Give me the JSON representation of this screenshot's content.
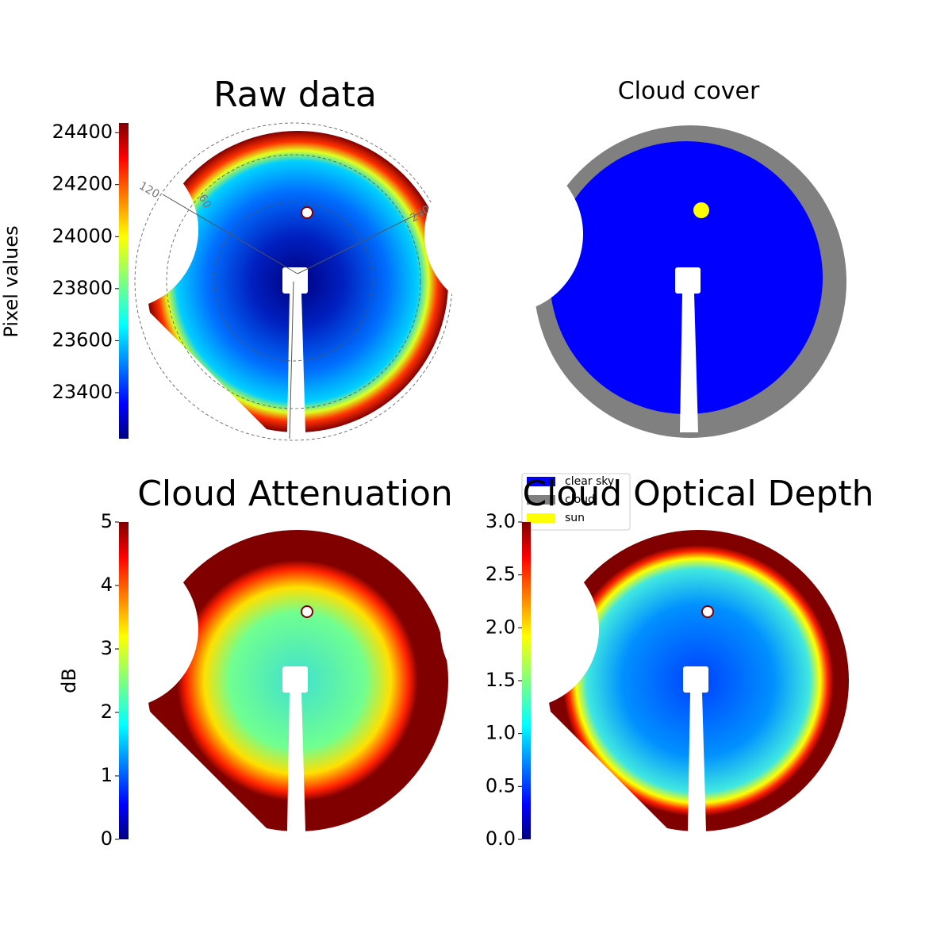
{
  "chart_data": [
    {
      "type": "image",
      "title": "Raw data",
      "colormap": "jet",
      "colorbar": {
        "label": "Pixel values",
        "ylim": [
          23223,
          24437
        ],
        "yticks": [
          23400,
          23600,
          23800,
          24000,
          24200,
          24400
        ]
      },
      "annotations": [
        "120",
        "60",
        "240"
      ]
    },
    {
      "type": "image",
      "title": "Cloud cover",
      "legend": {
        "series": [
          {
            "name": "clear sky",
            "color": "#0000ff"
          },
          {
            "name": "cloud",
            "color": "#808080"
          },
          {
            "name": "sun",
            "color": "#ffff00"
          }
        ]
      }
    },
    {
      "type": "image",
      "title": "Cloud Attenuation",
      "colormap": "jet",
      "colorbar": {
        "label": "dB",
        "ylim": [
          0,
          5
        ],
        "yticks": [
          0,
          1,
          2,
          3,
          4,
          5
        ]
      }
    },
    {
      "type": "image",
      "title": "Cloud Optical Depth",
      "colormap": "jet",
      "colorbar": {
        "ylim": [
          0,
          3
        ],
        "yticks": [
          {
            "value": 0,
            "label": "0.0"
          },
          0.5,
          {
            "value": 1,
            "label": "1.0"
          },
          1.5,
          {
            "value": 2,
            "label": "2.0"
          },
          2.5,
          {
            "value": 3,
            "label": "3.0"
          }
        ]
      }
    }
  ]
}
